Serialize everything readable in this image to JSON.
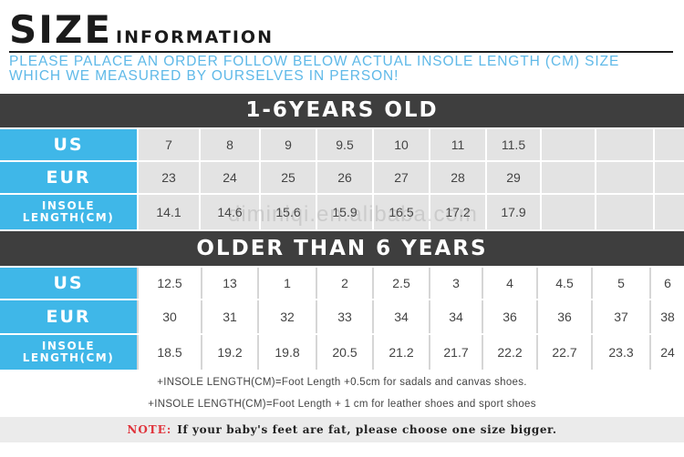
{
  "header": {
    "title_big": "SIZE",
    "title_small": "INFORMATION",
    "subtitle_line1": "PLEASE PALACE AN ORDER FOLLOW BELOW ACTUAL INSOLE LENGTH (CM) SIZE",
    "subtitle_line2": "WHICH WE MEASURED BY OURSELVES IN PERSON!"
  },
  "table1": {
    "heading": "1-6YEARS OLD",
    "labels": {
      "us": "US",
      "eur": "EUR",
      "insole_line1": "INSOLE",
      "insole_line2": "LENGTH(CM)"
    },
    "us": [
      "7",
      "8",
      "9",
      "9.5",
      "10",
      "11",
      "11.5",
      "",
      "",
      ""
    ],
    "eur": [
      "23",
      "24",
      "25",
      "26",
      "27",
      "28",
      "29",
      "",
      "",
      ""
    ],
    "insole": [
      "14.1",
      "14.6",
      "15.6",
      "15.9",
      "16.5",
      "17.2",
      "17.9",
      "",
      "",
      ""
    ]
  },
  "table2": {
    "heading": "OLDER THAN 6 YEARS",
    "labels": {
      "us": "US",
      "eur": "EUR",
      "insole_line1": "INSOLE",
      "insole_line2": "LENGTH(CM)"
    },
    "us": [
      "12.5",
      "13",
      "1",
      "2",
      "2.5",
      "3",
      "4",
      "4.5",
      "5",
      "6"
    ],
    "eur": [
      "30",
      "31",
      "32",
      "33",
      "34",
      "34",
      "36",
      "36",
      "37",
      "38"
    ],
    "insole": [
      "18.5",
      "19.2",
      "19.8",
      "20.5",
      "21.2",
      "21.7",
      "22.2",
      "22.7",
      "23.3",
      "24"
    ]
  },
  "watermark": "diminiqi.en.alibaba.com",
  "notes": {
    "line1": "+INSOLE LENGTH(CM)=Foot Length +0.5cm  for sadals and canvas shoes.",
    "line2": "+INSOLE LENGTH(CM)=Foot Length + 1 cm  for leather shoes and sport shoes",
    "note_label": "NOTE:",
    "note_text": "If your baby's feet are fat, please choose one size bigger."
  },
  "colors": {
    "accent_blue": "#3fb7e8",
    "band_dark": "#3e3e3e",
    "note_red": "#e0343c"
  }
}
